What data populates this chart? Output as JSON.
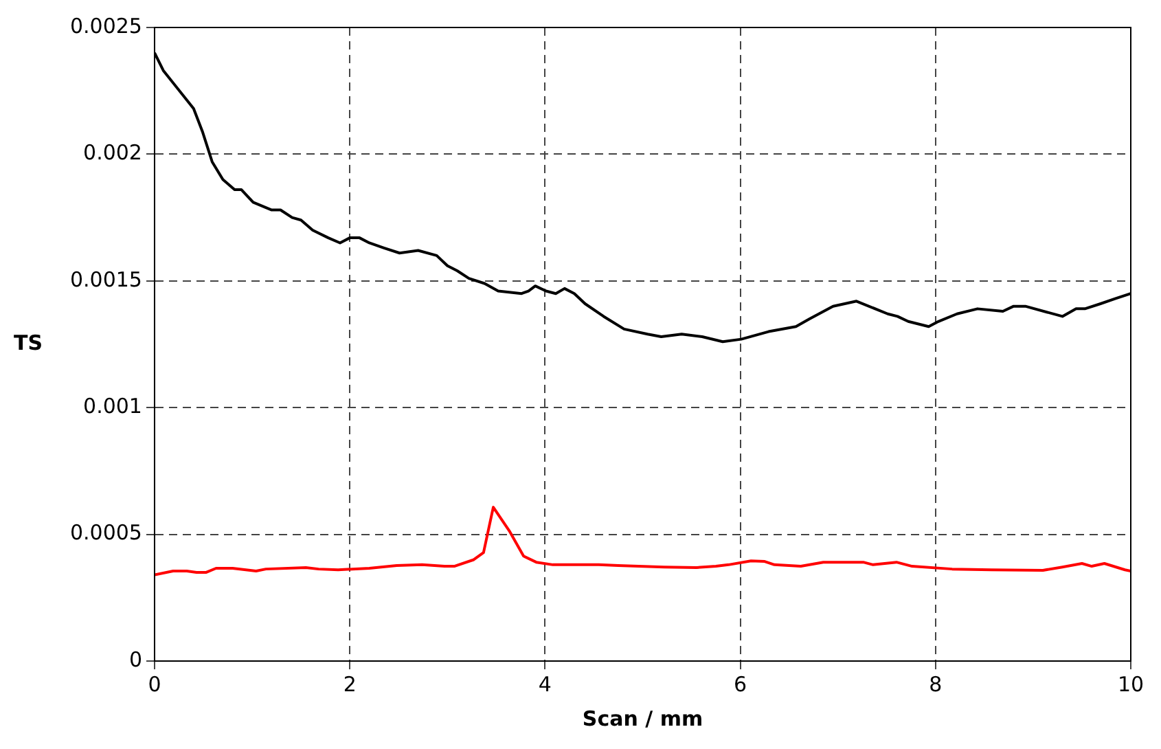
{
  "chart_data": {
    "type": "line",
    "xlabel": "Scan / mm",
    "ylabel": "TS",
    "xlim": [
      0,
      10
    ],
    "xticks": [
      0,
      2,
      4,
      6,
      8,
      10
    ],
    "ylim": [
      0,
      0.0025
    ],
    "yticks": [
      0,
      0.0005,
      0.001,
      0.0015,
      0.002,
      0.0025
    ],
    "grid": true,
    "marker": "none",
    "line_style": "solid",
    "series": [
      {
        "color": "#000000",
        "x": [
          0,
          0.09,
          0.4,
          0.49,
          0.59,
          0.7,
          0.82,
          0.89,
          1.01,
          1.2,
          1.29,
          1.41,
          1.5,
          1.62,
          1.78,
          1.9,
          2.0,
          2.1,
          2.2,
          2.35,
          2.51,
          2.7,
          2.89,
          3.0,
          3.1,
          3.22,
          3.38,
          3.52,
          3.76,
          3.83,
          3.9,
          4.01,
          4.11,
          4.2,
          4.3,
          4.41,
          4.6,
          4.81,
          5.05,
          5.19,
          5.4,
          5.61,
          5.82,
          6.01,
          6.29,
          6.57,
          6.71,
          6.95,
          7.19,
          7.51,
          7.61,
          7.72,
          7.93,
          8.03,
          8.22,
          8.43,
          8.69,
          8.8,
          8.92,
          9.3,
          9.44,
          9.53,
          9.69,
          9.84,
          10
        ],
        "values": [
          0.0024,
          0.00233,
          0.00218,
          0.00209,
          0.00197,
          0.0019,
          0.00186,
          0.00186,
          0.00181,
          0.00178,
          0.00178,
          0.00175,
          0.00174,
          0.0017,
          0.00167,
          0.00165,
          0.00167,
          0.00167,
          0.00165,
          0.00163,
          0.00161,
          0.00162,
          0.0016,
          0.00156,
          0.00154,
          0.00151,
          0.00149,
          0.00146,
          0.00145,
          0.00146,
          0.00148,
          0.00146,
          0.00145,
          0.00147,
          0.00145,
          0.00141,
          0.00136,
          0.00131,
          0.00129,
          0.00128,
          0.00129,
          0.00128,
          0.00126,
          0.00127,
          0.0013,
          0.00132,
          0.00135,
          0.0014,
          0.00142,
          0.00137,
          0.00136,
          0.00134,
          0.00132,
          0.00134,
          0.00137,
          0.00139,
          0.00138,
          0.0014,
          0.0014,
          0.00136,
          0.00139,
          0.00139,
          0.00141,
          0.00143,
          0.00145
        ]
      },
      {
        "color": "#ff0000",
        "x": [
          0,
          0.19,
          0.33,
          0.43,
          0.53,
          0.63,
          0.8,
          1.04,
          1.14,
          1.55,
          1.68,
          1.88,
          2.2,
          2.48,
          2.74,
          2.97,
          3.07,
          3.27,
          3.37,
          3.47,
          3.64,
          3.78,
          3.91,
          4.08,
          4.55,
          4.75,
          5.22,
          5.55,
          5.75,
          5.88,
          6.11,
          6.25,
          6.35,
          6.62,
          6.85,
          7.26,
          7.36,
          7.6,
          7.76,
          8.17,
          8.57,
          9.1,
          9.3,
          9.5,
          9.6,
          9.73,
          9.94,
          10
        ],
        "values": [
          0.00034,
          0.000355,
          0.000355,
          0.00035,
          0.00035,
          0.000366,
          0.000366,
          0.000355,
          0.000363,
          0.000369,
          0.000363,
          0.00036,
          0.000366,
          0.000377,
          0.00038,
          0.000374,
          0.000374,
          0.0004,
          0.000428,
          0.000607,
          0.00051,
          0.000414,
          0.00039,
          0.00038,
          0.00038,
          0.000377,
          0.000371,
          0.000369,
          0.000374,
          0.00038,
          0.000395,
          0.000393,
          0.00038,
          0.000374,
          0.00039,
          0.00039,
          0.00038,
          0.00039,
          0.000374,
          0.000363,
          0.00036,
          0.000358,
          0.000371,
          0.000385,
          0.000374,
          0.000385,
          0.00036,
          0.000355
        ]
      }
    ]
  }
}
